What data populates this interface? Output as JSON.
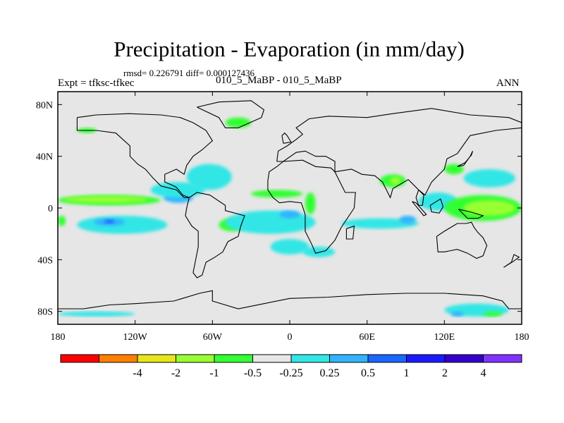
{
  "title": "Precipitation - Evaporation (in mm/day)",
  "stats": "rmsd= 0.226791 diff= 0.000127436",
  "expt_label": "Expt = tfksc-tfkec",
  "case_label": "010_5_MaBP - 010_5_MaBP",
  "season": "ANN",
  "map": {
    "lon_range": [
      -180,
      180
    ],
    "lat_range": [
      -90,
      90
    ],
    "x_ticks": [
      {
        "lon": -180,
        "label": "180"
      },
      {
        "lon": -120,
        "label": "120W"
      },
      {
        "lon": -60,
        "label": "60W"
      },
      {
        "lon": 0,
        "label": "0"
      },
      {
        "lon": 60,
        "label": "60E"
      },
      {
        "lon": 120,
        "label": "120E"
      },
      {
        "lon": 180,
        "label": "180"
      }
    ],
    "y_ticks": [
      {
        "lat": 80,
        "label": "80N"
      },
      {
        "lat": 40,
        "label": "40N"
      },
      {
        "lat": 0,
        "label": "0"
      },
      {
        "lat": -40,
        "label": "40S"
      },
      {
        "lat": -80,
        "label": "80S"
      }
    ],
    "background_color": "#e6e6e6"
  },
  "colorbar": {
    "colors": [
      "#ff0000",
      "#ff8000",
      "#e6e619",
      "#99ff33",
      "#33ff33",
      "#e6e6e6",
      "#33e6e6",
      "#33b3ff",
      "#1a66ff",
      "#1a1aff",
      "#3300cc",
      "#8033ff"
    ],
    "labels": [
      "-4",
      "-2",
      "-1",
      "-0.5",
      "-0.25",
      "0.25",
      "0.5",
      "1",
      "2",
      "4"
    ]
  },
  "field_patches": [
    {
      "name": "itcz-pacific-north",
      "level": "-0.25",
      "color": "#33ff33",
      "lon": [
        -180,
        -100
      ],
      "lat": [
        2,
        10
      ]
    },
    {
      "name": "itcz-pacific-band",
      "level": "-0.5",
      "color": "#99ff33",
      "lon": [
        -175,
        -110
      ],
      "lat": [
        4,
        9
      ]
    },
    {
      "name": "spcz-west",
      "level": "-0.25",
      "color": "#33ff33",
      "lon": [
        -180,
        -174
      ],
      "lat": [
        -14,
        -6
      ]
    },
    {
      "name": "pacific-south-moist",
      "level": "0.25",
      "color": "#33e6e6",
      "lon": [
        -165,
        -95
      ],
      "lat": [
        -20,
        -6
      ]
    },
    {
      "name": "pacific-south-core",
      "level": "0.5",
      "color": "#33b3ff",
      "lon": [
        -152,
        -128
      ],
      "lat": [
        -14,
        -8
      ]
    },
    {
      "name": "pacific-south-min",
      "level": "1",
      "color": "#1a66ff",
      "lon": [
        -144,
        -136
      ],
      "lat": [
        -12,
        -9
      ]
    },
    {
      "name": "eastern-pacific-wet",
      "level": "0.5",
      "color": "#33b3ff",
      "lon": [
        -98,
        -75
      ],
      "lat": [
        4,
        12
      ]
    },
    {
      "name": "eastern-pacific-moist",
      "level": "0.25",
      "color": "#33e6e6",
      "lon": [
        -108,
        -66
      ],
      "lat": [
        8,
        20
      ]
    },
    {
      "name": "north-america-moist",
      "level": "0.25",
      "color": "#33e6e6",
      "lon": [
        -80,
        -45
      ],
      "lat": [
        14,
        34
      ]
    },
    {
      "name": "amazon-dry",
      "level": "-0.25",
      "color": "#33ff33",
      "lon": [
        -55,
        -35
      ],
      "lat": [
        -18,
        -8
      ]
    },
    {
      "name": "atlantic-moist",
      "level": "0.25",
      "color": "#33e6e6",
      "lon": [
        -50,
        20
      ],
      "lat": [
        -20,
        -2
      ]
    },
    {
      "name": "atlantic-wet-core",
      "level": "0.5",
      "color": "#33b3ff",
      "lon": [
        -8,
        8
      ],
      "lat": [
        -8,
        -2
      ]
    },
    {
      "name": "atlantic-itcz-dry",
      "level": "-0.25",
      "color": "#33ff33",
      "lon": [
        -30,
        10
      ],
      "lat": [
        8,
        14
      ]
    },
    {
      "name": "south-atlantic-moist",
      "level": "0.25",
      "color": "#33e6e6",
      "lon": [
        -15,
        15
      ],
      "lat": [
        -36,
        -24
      ]
    },
    {
      "name": "africa-moist",
      "level": "0.25",
      "color": "#33e6e6",
      "lon": [
        10,
        35
      ],
      "lat": [
        -38,
        -30
      ]
    },
    {
      "name": "arabia-dry",
      "level": "-0.25",
      "color": "#33ff33",
      "lon": [
        12,
        20
      ],
      "lat": [
        -5,
        12
      ]
    },
    {
      "name": "indian-ocean-moist",
      "level": "0.25",
      "color": "#33e6e6",
      "lon": [
        40,
        100
      ],
      "lat": [
        -16,
        -8
      ]
    },
    {
      "name": "indian-ocean-wet",
      "level": "0.5",
      "color": "#33b3ff",
      "lon": [
        85,
        98
      ],
      "lat": [
        -12,
        -6
      ]
    },
    {
      "name": "india-dry",
      "level": "-0.25",
      "color": "#33ff33",
      "lon": [
        70,
        90
      ],
      "lat": [
        16,
        26
      ]
    },
    {
      "name": "india-dry-core",
      "level": "-0.5",
      "color": "#99ff33",
      "lon": [
        78,
        86
      ],
      "lat": [
        18,
        24
      ]
    },
    {
      "name": "maritime-continent-moist",
      "level": "0.25",
      "color": "#33e6e6",
      "lon": [
        100,
        130
      ],
      "lat": [
        -2,
        12
      ]
    },
    {
      "name": "west-pacific-dry",
      "level": "-0.25",
      "color": "#33ff33",
      "lon": [
        120,
        180
      ],
      "lat": [
        -10,
        10
      ]
    },
    {
      "name": "west-pacific-dry-core",
      "level": "-0.5",
      "color": "#99ff33",
      "lon": [
        135,
        175
      ],
      "lat": [
        -6,
        6
      ]
    },
    {
      "name": "north-pacific-moist",
      "level": "0.25",
      "color": "#33e6e6",
      "lon": [
        135,
        175
      ],
      "lat": [
        16,
        30
      ]
    },
    {
      "name": "north-pacific-dry",
      "level": "-0.25",
      "color": "#33ff33",
      "lon": [
        120,
        135
      ],
      "lat": [
        26,
        34
      ]
    },
    {
      "name": "siberia-dry",
      "level": "-0.25",
      "color": "#33ff33",
      "lon": [
        -50,
        -30
      ],
      "lat": [
        62,
        70
      ]
    },
    {
      "name": "alaska-dry",
      "level": "-0.25",
      "color": "#33ff33",
      "lon": [
        -165,
        -150
      ],
      "lat": [
        58,
        62
      ]
    },
    {
      "name": "antarctic-coast-moist",
      "level": "0.25",
      "color": "#33e6e6",
      "lon": [
        -180,
        -120
      ],
      "lat": [
        -84,
        -80
      ]
    },
    {
      "name": "antarctic-east-moist",
      "level": "0.25",
      "color": "#33e6e6",
      "lon": [
        120,
        170
      ],
      "lat": [
        -84,
        -74
      ]
    },
    {
      "name": "antarctic-east-dry",
      "level": "-0.25",
      "color": "#33ff33",
      "lon": [
        150,
        165
      ],
      "lat": [
        -84,
        -80
      ]
    },
    {
      "name": "antarctic-east-wet",
      "level": "0.5",
      "color": "#33b3ff",
      "lon": [
        125,
        135
      ],
      "lat": [
        -84,
        -80
      ]
    }
  ],
  "coastlines": [
    {
      "name": "north-america",
      "points": [
        [
          -165,
          70
        ],
        [
          -150,
          72
        ],
        [
          -125,
          73
        ],
        [
          -100,
          72
        ],
        [
          -85,
          70
        ],
        [
          -75,
          66
        ],
        [
          -65,
          60
        ],
        [
          -60,
          52
        ],
        [
          -68,
          45
        ],
        [
          -75,
          40
        ],
        [
          -80,
          33
        ],
        [
          -82,
          26
        ],
        [
          -88,
          30
        ],
        [
          -97,
          26
        ],
        [
          -97,
          20
        ],
        [
          -92,
          18
        ],
        [
          -88,
          16
        ],
        [
          -83,
          10
        ],
        [
          -78,
          8
        ],
        [
          -82,
          8
        ],
        [
          -88,
          14
        ],
        [
          -100,
          17
        ],
        [
          -106,
          23
        ],
        [
          -112,
          30
        ],
        [
          -118,
          34
        ],
        [
          -124,
          40
        ],
        [
          -124,
          48
        ],
        [
          -135,
          58
        ],
        [
          -150,
          60
        ],
        [
          -165,
          60
        ],
        [
          -165,
          70
        ]
      ]
    },
    {
      "name": "greenland",
      "points": [
        [
          -72,
          78
        ],
        [
          -55,
          82
        ],
        [
          -30,
          83
        ],
        [
          -20,
          76
        ],
        [
          -22,
          70
        ],
        [
          -40,
          62
        ],
        [
          -50,
          62
        ],
        [
          -55,
          70
        ],
        [
          -72,
          78
        ]
      ]
    },
    {
      "name": "south-america",
      "points": [
        [
          -78,
          8
        ],
        [
          -72,
          12
        ],
        [
          -62,
          10
        ],
        [
          -50,
          2
        ],
        [
          -50,
          -2
        ],
        [
          -35,
          -6
        ],
        [
          -38,
          -14
        ],
        [
          -40,
          -22
        ],
        [
          -48,
          -26
        ],
        [
          -52,
          -34
        ],
        [
          -58,
          -38
        ],
        [
          -65,
          -42
        ],
        [
          -68,
          -52
        ],
        [
          -72,
          -54
        ],
        [
          -75,
          -50
        ],
        [
          -73,
          -40
        ],
        [
          -71,
          -30
        ],
        [
          -71,
          -18
        ],
        [
          -76,
          -14
        ],
        [
          -81,
          -6
        ],
        [
          -80,
          0
        ],
        [
          -78,
          8
        ]
      ]
    },
    {
      "name": "eurasia",
      "points": [
        [
          -10,
          36
        ],
        [
          -9,
          44
        ],
        [
          -2,
          48
        ],
        [
          5,
          53
        ],
        [
          10,
          57
        ],
        [
          5,
          62
        ],
        [
          15,
          69
        ],
        [
          30,
          71
        ],
        [
          60,
          70
        ],
        [
          80,
          73
        ],
        [
          110,
          77
        ],
        [
          140,
          72
        ],
        [
          170,
          70
        ],
        [
          180,
          66
        ],
        [
          180,
          62
        ],
        [
          160,
          60
        ],
        [
          140,
          56
        ],
        [
          130,
          42
        ],
        [
          122,
          38
        ],
        [
          120,
          30
        ],
        [
          110,
          20
        ],
        [
          105,
          10
        ],
        [
          100,
          14
        ],
        [
          98,
          8
        ],
        [
          100,
          2
        ],
        [
          103,
          2
        ],
        [
          104,
          10
        ],
        [
          92,
          22
        ],
        [
          80,
          15
        ],
        [
          78,
          8
        ],
        [
          72,
          20
        ],
        [
          66,
          25
        ],
        [
          56,
          26
        ],
        [
          48,
          30
        ],
        [
          35,
          28
        ],
        [
          35,
          36
        ],
        [
          28,
          40
        ],
        [
          20,
          40
        ],
        [
          12,
          44
        ],
        [
          5,
          43
        ],
        [
          -5,
          36
        ],
        [
          -10,
          36
        ]
      ]
    },
    {
      "name": "africa",
      "points": [
        [
          -17,
          21
        ],
        [
          -16,
          28
        ],
        [
          -10,
          32
        ],
        [
          -5,
          36
        ],
        [
          10,
          37
        ],
        [
          20,
          32
        ],
        [
          32,
          31
        ],
        [
          35,
          28
        ],
        [
          43,
          12
        ],
        [
          51,
          12
        ],
        [
          50,
          0
        ],
        [
          40,
          -15
        ],
        [
          35,
          -25
        ],
        [
          28,
          -33
        ],
        [
          20,
          -35
        ],
        [
          17,
          -28
        ],
        [
          12,
          -18
        ],
        [
          12,
          -5
        ],
        [
          9,
          4
        ],
        [
          0,
          5
        ],
        [
          -8,
          4
        ],
        [
          -13,
          8
        ],
        [
          -17,
          14
        ],
        [
          -17,
          21
        ]
      ]
    },
    {
      "name": "madagascar",
      "points": [
        [
          44,
          -16
        ],
        [
          50,
          -14
        ],
        [
          49,
          -24
        ],
        [
          44,
          -24
        ],
        [
          44,
          -16
        ]
      ]
    },
    {
      "name": "australia",
      "points": [
        [
          114,
          -22
        ],
        [
          120,
          -18
        ],
        [
          130,
          -12
        ],
        [
          137,
          -12
        ],
        [
          141,
          -11
        ],
        [
          143,
          -15
        ],
        [
          146,
          -19
        ],
        [
          150,
          -23
        ],
        [
          153,
          -29
        ],
        [
          150,
          -37
        ],
        [
          145,
          -39
        ],
        [
          138,
          -35
        ],
        [
          130,
          -32
        ],
        [
          120,
          -34
        ],
        [
          115,
          -34
        ],
        [
          114,
          -22
        ]
      ]
    },
    {
      "name": "new-guinea",
      "points": [
        [
          131,
          -1
        ],
        [
          140,
          -3
        ],
        [
          150,
          -6
        ],
        [
          146,
          -8
        ],
        [
          138,
          -8
        ],
        [
          131,
          -1
        ]
      ]
    },
    {
      "name": "borneo",
      "points": [
        [
          109,
          2
        ],
        [
          117,
          7
        ],
        [
          119,
          1
        ],
        [
          116,
          -4
        ],
        [
          110,
          -3
        ],
        [
          109,
          2
        ]
      ]
    },
    {
      "name": "sumatra",
      "points": [
        [
          95,
          5
        ],
        [
          98,
          4
        ],
        [
          106,
          -5
        ],
        [
          104,
          -6
        ],
        [
          95,
          5
        ]
      ]
    },
    {
      "name": "japan",
      "points": [
        [
          130,
          32
        ],
        [
          136,
          35
        ],
        [
          141,
          41
        ],
        [
          142,
          44
        ],
        [
          140,
          40
        ],
        [
          135,
          33
        ],
        [
          130,
          32
        ]
      ]
    },
    {
      "name": "great-britain",
      "points": [
        [
          -5,
          50
        ],
        [
          1,
          51
        ],
        [
          -2,
          56
        ],
        [
          -4,
          58
        ],
        [
          -6,
          56
        ],
        [
          -5,
          50
        ]
      ]
    },
    {
      "name": "new-zealand",
      "points": [
        [
          166,
          -46
        ],
        [
          174,
          -41
        ],
        [
          178,
          -38
        ],
        [
          174,
          -36
        ],
        [
          172,
          -42
        ],
        [
          166,
          -46
        ]
      ]
    },
    {
      "name": "antarctica",
      "points": [
        [
          -180,
          -78
        ],
        [
          -160,
          -78
        ],
        [
          -140,
          -75
        ],
        [
          -120,
          -74
        ],
        [
          -90,
          -72
        ],
        [
          -70,
          -66
        ],
        [
          -60,
          -64
        ],
        [
          -60,
          -72
        ],
        [
          -40,
          -78
        ],
        [
          -20,
          -74
        ],
        [
          0,
          -70
        ],
        [
          30,
          -69
        ],
        [
          60,
          -67
        ],
        [
          90,
          -66
        ],
        [
          120,
          -66
        ],
        [
          150,
          -68
        ],
        [
          165,
          -72
        ],
        [
          170,
          -78
        ],
        [
          180,
          -78
        ]
      ]
    }
  ]
}
